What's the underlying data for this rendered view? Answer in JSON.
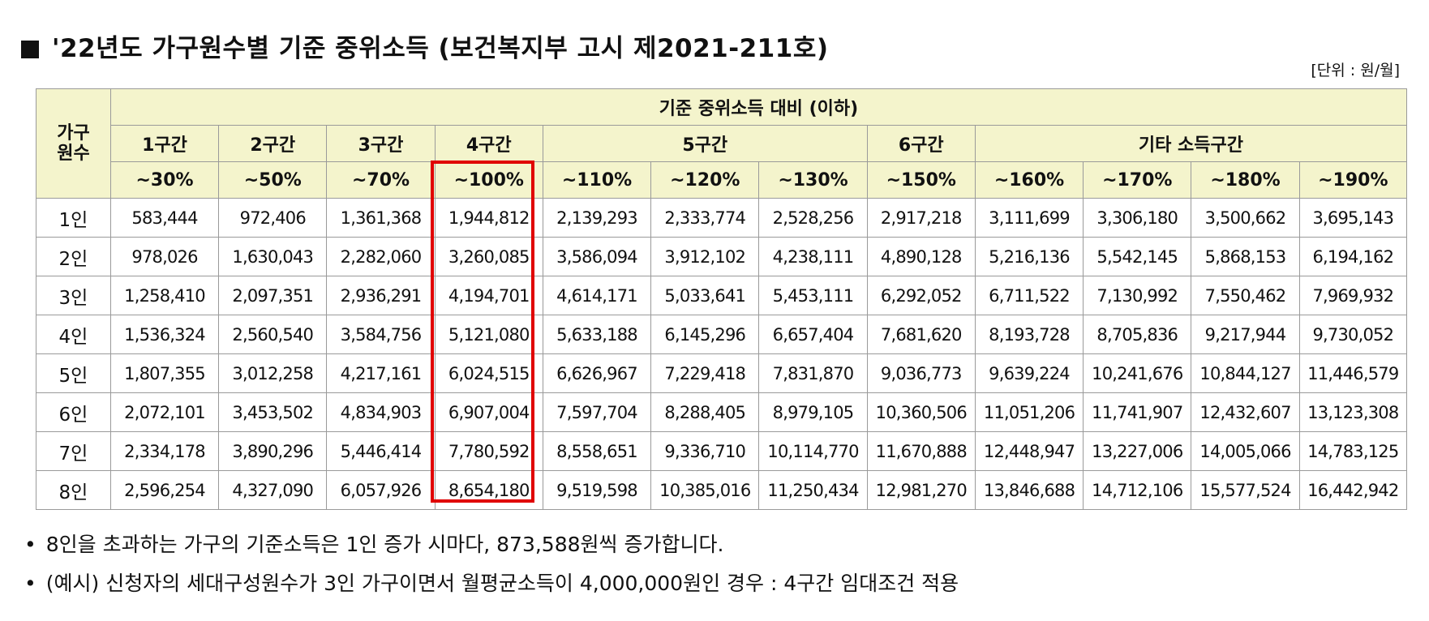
{
  "title": "'22년도 가구원수별 기준 중위소득 (보건복지부 고시 제2021-211호)",
  "unit": "[단위 : 원/월]",
  "table": {
    "corner_label": [
      "가구",
      "원수"
    ],
    "top_header": "기준 중위소득 대비 (이하)",
    "group_headers": [
      {
        "label": "1구간",
        "span": 1
      },
      {
        "label": "2구간",
        "span": 1
      },
      {
        "label": "3구간",
        "span": 1
      },
      {
        "label": "4구간",
        "span": 1
      },
      {
        "label": "5구간",
        "span": 3
      },
      {
        "label": "6구간",
        "span": 1
      },
      {
        "label": "기타 소득구간",
        "span": 4
      }
    ],
    "percent_headers": [
      "~30%",
      "~50%",
      "~70%",
      "~100%",
      "~110%",
      "~120%",
      "~130%",
      "~150%",
      "~160%",
      "~170%",
      "~180%",
      "~190%"
    ],
    "highlighted_column": 3,
    "highlight_color": "#e00000",
    "header_bg": "#f4f4cc",
    "rows": [
      {
        "label": "1인",
        "values": [
          "583,444",
          "972,406",
          "1,361,368",
          "1,944,812",
          "2,139,293",
          "2,333,774",
          "2,528,256",
          "2,917,218",
          "3,111,699",
          "3,306,180",
          "3,500,662",
          "3,695,143"
        ]
      },
      {
        "label": "2인",
        "values": [
          "978,026",
          "1,630,043",
          "2,282,060",
          "3,260,085",
          "3,586,094",
          "3,912,102",
          "4,238,111",
          "4,890,128",
          "5,216,136",
          "5,542,145",
          "5,868,153",
          "6,194,162"
        ]
      },
      {
        "label": "3인",
        "values": [
          "1,258,410",
          "2,097,351",
          "2,936,291",
          "4,194,701",
          "4,614,171",
          "5,033,641",
          "5,453,111",
          "6,292,052",
          "6,711,522",
          "7,130,992",
          "7,550,462",
          "7,969,932"
        ]
      },
      {
        "label": "4인",
        "values": [
          "1,536,324",
          "2,560,540",
          "3,584,756",
          "5,121,080",
          "5,633,188",
          "6,145,296",
          "6,657,404",
          "7,681,620",
          "8,193,728",
          "8,705,836",
          "9,217,944",
          "9,730,052"
        ]
      },
      {
        "label": "5인",
        "values": [
          "1,807,355",
          "3,012,258",
          "4,217,161",
          "6,024,515",
          "6,626,967",
          "7,229,418",
          "7,831,870",
          "9,036,773",
          "9,639,224",
          "10,241,676",
          "10,844,127",
          "11,446,579"
        ]
      },
      {
        "label": "6인",
        "values": [
          "2,072,101",
          "3,453,502",
          "4,834,903",
          "6,907,004",
          "7,597,704",
          "8,288,405",
          "8,979,105",
          "10,360,506",
          "11,051,206",
          "11,741,907",
          "12,432,607",
          "13,123,308"
        ]
      },
      {
        "label": "7인",
        "values": [
          "2,334,178",
          "3,890,296",
          "5,446,414",
          "7,780,592",
          "8,558,651",
          "9,336,710",
          "10,114,770",
          "11,670,888",
          "12,448,947",
          "13,227,006",
          "14,005,066",
          "14,783,125"
        ]
      },
      {
        "label": "8인",
        "values": [
          "2,596,254",
          "4,327,090",
          "6,057,926",
          "8,654,180",
          "9,519,598",
          "10,385,016",
          "11,250,434",
          "12,981,270",
          "13,846,688",
          "14,712,106",
          "15,577,524",
          "16,442,942"
        ]
      }
    ]
  },
  "notes": [
    "8인을 초과하는 가구의 기준소득은 1인 증가 시마다, 873,588원씩 증가합니다.",
    "(예시) 신청자의 세대구성원수가 3인 가구이면서 월평균소득이 4,000,000원인 경우 : 4구간 임대조건 적용"
  ]
}
